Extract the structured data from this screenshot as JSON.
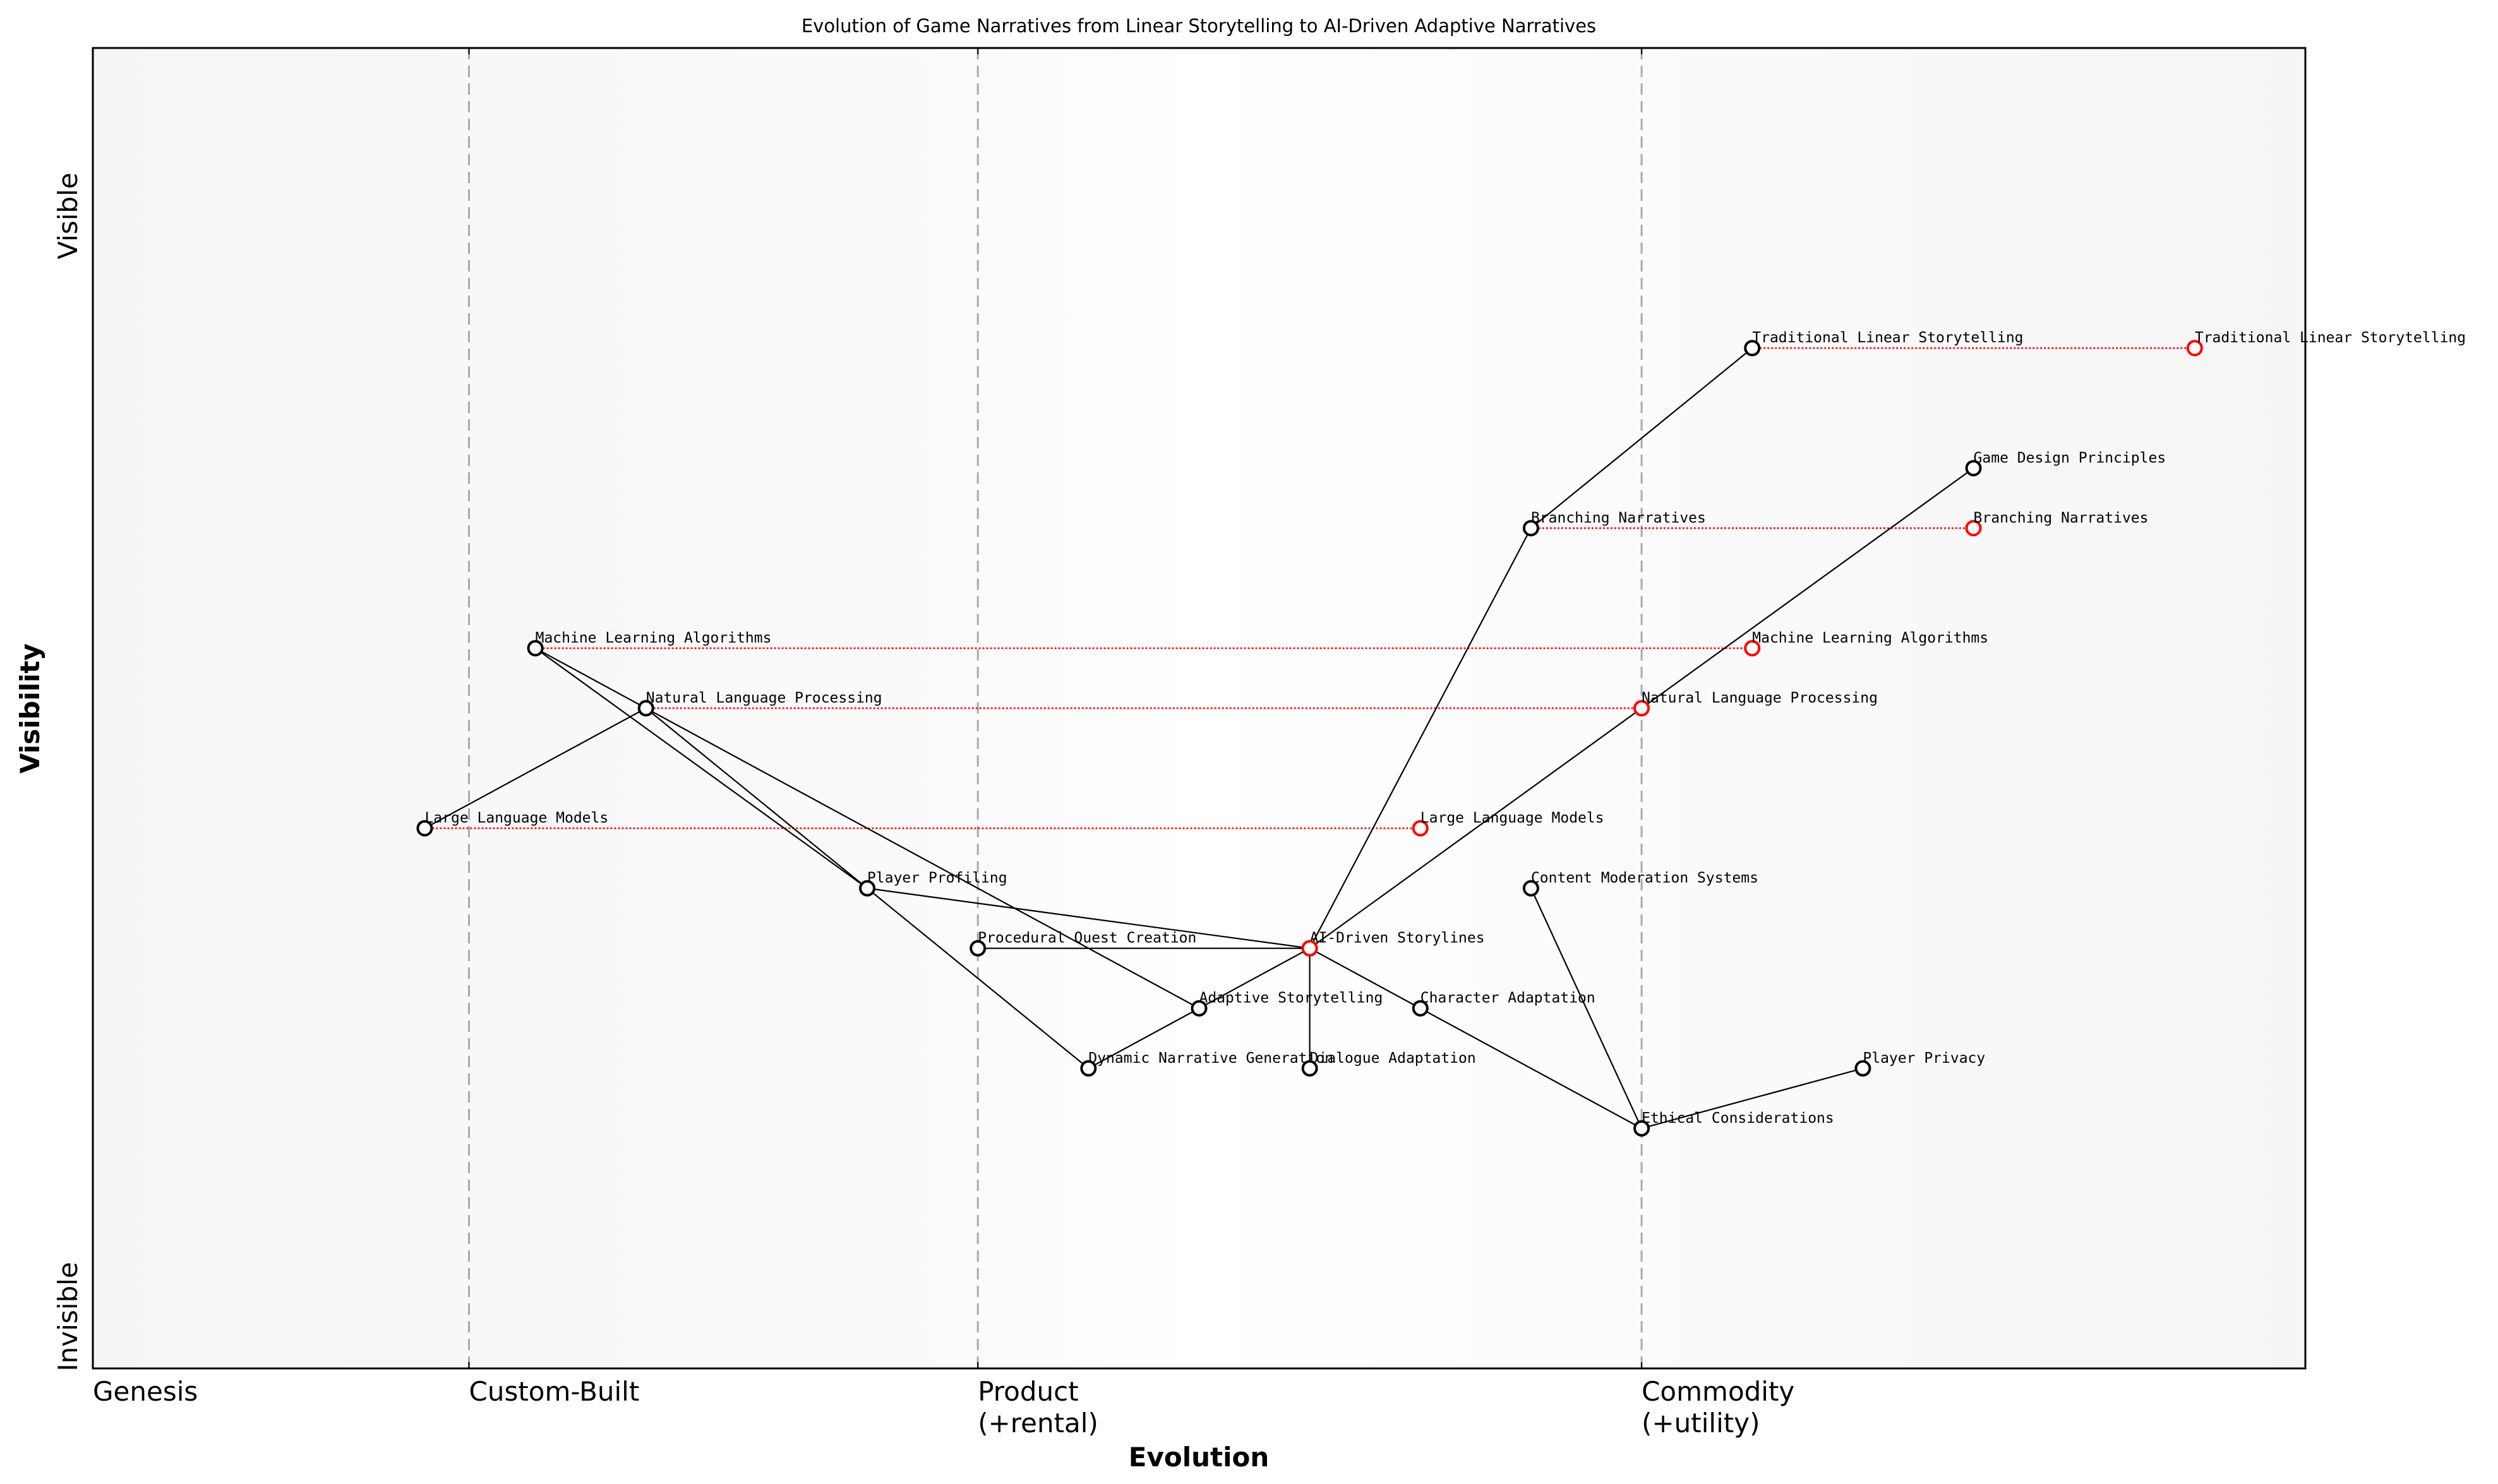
{
  "chart_data": {
    "type": "wardley-map",
    "title": "Evolution of Game Narratives from Linear Storytelling to AI-Driven Adaptive Narratives",
    "xlabel": "Evolution",
    "ylabel": "Visibility",
    "xlim": [
      0,
      1
    ],
    "ylim": [
      0,
      1.1
    ],
    "grid": false,
    "stages": [
      {
        "label": "Genesis",
        "x": 0
      },
      {
        "label": "Custom-Built",
        "x": 0.17
      },
      {
        "label": "Product\n(+rental)",
        "x": 0.4
      },
      {
        "label": "Commodity\n(+utility)",
        "x": 0.7
      }
    ],
    "y_labels": {
      "top": "Visible",
      "bottom": "Invisible"
    },
    "colors": {
      "component": "#000000",
      "evolved": "#ff0000",
      "stage_line": "#aaaaaa",
      "background_edge": "#f5f5f5",
      "background_center": "#ffffff"
    },
    "components": [
      {
        "name": "Traditional Linear Storytelling",
        "evolution": 0.75,
        "visibility": 0.85
      },
      {
        "name": "Game Design Principles",
        "evolution": 0.85,
        "visibility": 0.75
      },
      {
        "name": "Branching Narratives",
        "evolution": 0.65,
        "visibility": 0.7
      },
      {
        "name": "Machine Learning Algorithms",
        "evolution": 0.2,
        "visibility": 0.6
      },
      {
        "name": "Natural Language Processing",
        "evolution": 0.25,
        "visibility": 0.55
      },
      {
        "name": "Large Language Models",
        "evolution": 0.15,
        "visibility": 0.45
      },
      {
        "name": "Player Profiling",
        "evolution": 0.35,
        "visibility": 0.4
      },
      {
        "name": "Content Moderation Systems",
        "evolution": 0.65,
        "visibility": 0.4
      },
      {
        "name": "Procedural Quest Creation",
        "evolution": 0.4,
        "visibility": 0.35
      },
      {
        "name": "AI-Driven Storylines",
        "evolution": 0.55,
        "visibility": 0.35
      },
      {
        "name": "Adaptive Storytelling",
        "evolution": 0.5,
        "visibility": 0.3
      },
      {
        "name": "Character Adaptation",
        "evolution": 0.6,
        "visibility": 0.3
      },
      {
        "name": "Dynamic Narrative Generation",
        "evolution": 0.45,
        "visibility": 0.25
      },
      {
        "name": "Dialogue Adaptation",
        "evolution": 0.55,
        "visibility": 0.25
      },
      {
        "name": "Player Privacy",
        "evolution": 0.8,
        "visibility": 0.25
      },
      {
        "name": "Ethical Considerations",
        "evolution": 0.7,
        "visibility": 0.2
      }
    ],
    "evolved": [
      {
        "name": "Traditional Linear Storytelling",
        "from": 0.75,
        "to": 0.95,
        "visibility": 0.85
      },
      {
        "name": "Branching Narratives",
        "from": 0.65,
        "to": 0.85,
        "visibility": 0.7
      },
      {
        "name": "Machine Learning Algorithms",
        "from": 0.2,
        "to": 0.75,
        "visibility": 0.6
      },
      {
        "name": "Natural Language Processing",
        "from": 0.25,
        "to": 0.7,
        "visibility": 0.55
      },
      {
        "name": "Large Language Models",
        "from": 0.15,
        "to": 0.6,
        "visibility": 0.45
      },
      {
        "name": "AI-Driven Storylines",
        "from": 0.55,
        "to": 0.55,
        "visibility": 0.35
      }
    ],
    "links": [
      [
        "Branching Narratives",
        "Traditional Linear Storytelling"
      ],
      [
        "AI-Driven Storylines",
        "Branching Narratives"
      ],
      [
        "AI-Driven Storylines",
        "Game Design Principles"
      ],
      [
        "Natural Language Processing",
        "Large Language Models"
      ],
      [
        "Machine Learning Algorithms",
        "Player Profiling"
      ],
      [
        "Natural Language Processing",
        "Player Profiling"
      ],
      [
        "Machine Learning Algorithms",
        "Adaptive Storytelling"
      ],
      [
        "Player Profiling",
        "AI-Driven Storylines"
      ],
      [
        "Player Profiling",
        "Dynamic Narrative Generation"
      ],
      [
        "Procedural Quest Creation",
        "AI-Driven Storylines"
      ],
      [
        "AI-Driven Storylines",
        "Adaptive Storytelling"
      ],
      [
        "Adaptive Storytelling",
        "Dynamic Narrative Generation"
      ],
      [
        "AI-Driven Storylines",
        "Dialogue Adaptation"
      ],
      [
        "AI-Driven Storylines",
        "Character Adaptation"
      ],
      [
        "Character Adaptation",
        "Ethical Considerations"
      ],
      [
        "Content Moderation Systems",
        "Ethical Considerations"
      ],
      [
        "Ethical Considerations",
        "Player Privacy"
      ]
    ]
  }
}
